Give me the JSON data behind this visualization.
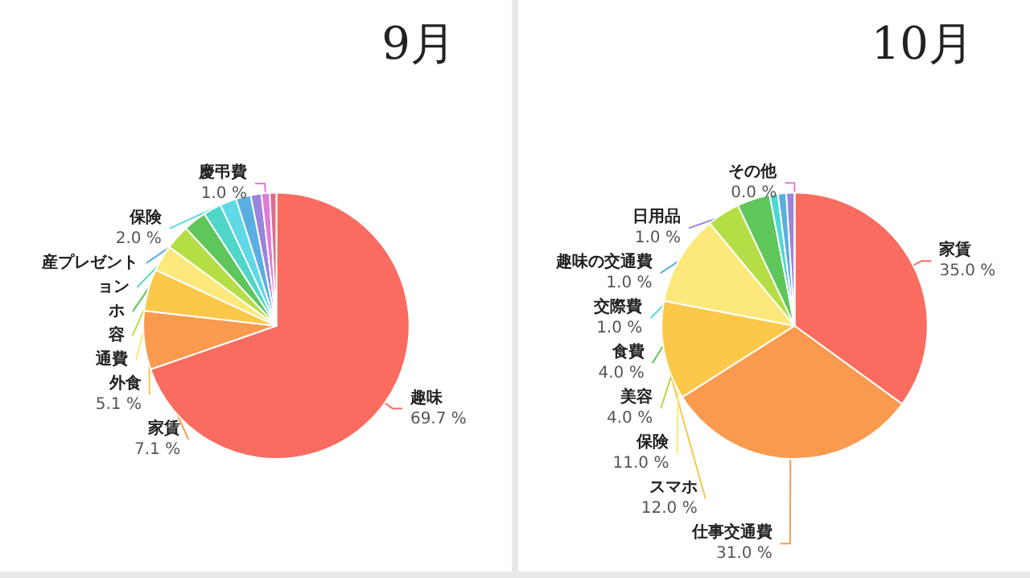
{
  "chart_data": [
    {
      "type": "pie",
      "title": "9月",
      "categories": [
        "趣味",
        "家賃",
        "外食",
        "通費",
        "容",
        "ホ",
        "ョン",
        "保険",
        "産プレゼント",
        null,
        "慶弔費",
        null
      ],
      "values": [
        69.7,
        7.1,
        5.1,
        3.2,
        3.0,
        2.8,
        2.2,
        2.0,
        1.8,
        1.3,
        1.0,
        0.8
      ],
      "colors": [
        "#f96c5f",
        "#fa9a4f",
        "#fbc84a",
        "#fde97b",
        "#b5dd45",
        "#5ec65a",
        "#4fd6c8",
        "#5fd8e8",
        "#5aaee0",
        "#9a84dc",
        "#e07ad8",
        "#e06a8a"
      ],
      "value_labels": [
        "69.7 %",
        "7.1 %",
        "5.1 %",
        null,
        null,
        null,
        null,
        "2.0 %",
        null,
        null,
        "1.0 %",
        null
      ]
    },
    {
      "type": "pie",
      "title": "10月",
      "categories": [
        "家賃",
        "仕事交通費",
        "スマホ",
        "保険",
        "美容",
        "食費",
        "交際費",
        "趣味の交通費",
        "日用品",
        "その他"
      ],
      "values": [
        35.0,
        31.0,
        12.0,
        11.0,
        4.0,
        4.0,
        1.0,
        1.0,
        1.0,
        0.0
      ],
      "colors": [
        "#f96c5f",
        "#fa9a4f",
        "#fbc84a",
        "#fde97b",
        "#b5dd45",
        "#5ec65a",
        "#4fd6d6",
        "#5aaee0",
        "#9a84dc",
        "#e07ad8"
      ],
      "value_labels": [
        "35.0 %",
        "31.0 %",
        "12.0 %",
        "11.0 %",
        "4.0 %",
        "4.0 %",
        "1.0 %",
        "1.0 %",
        "1.0 %",
        "0.0 %"
      ]
    }
  ]
}
